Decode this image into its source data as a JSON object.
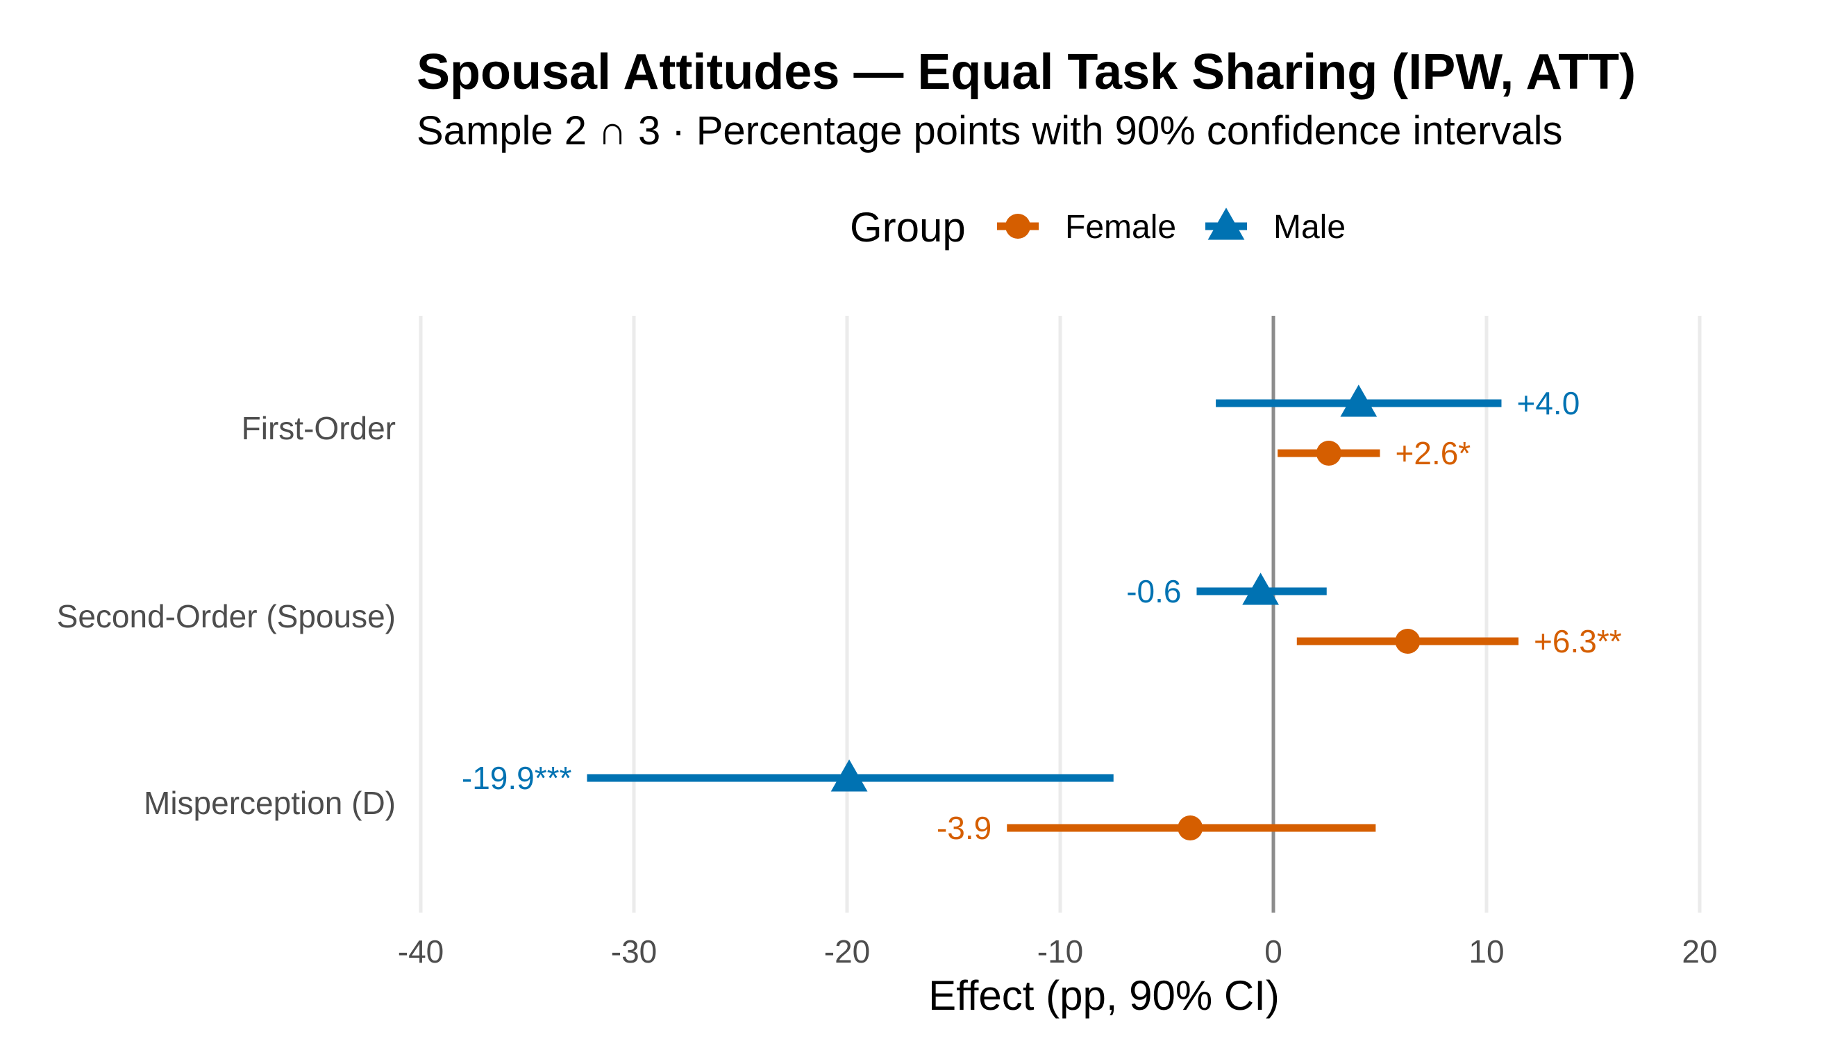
{
  "colors": {
    "female": "#D55E00",
    "male": "#0072B2",
    "grid": "#ebebeb",
    "zero_line": "#8c8c8c"
  },
  "chart_data": {
    "type": "forest",
    "title": "Spousal Attitudes — Equal Task Sharing (IPW, ATT)",
    "subtitle": "Sample 2 ∩ 3 · Percentage points with 90% confidence intervals",
    "xlabel": "Effect (pp, 90% CI)",
    "ylabel": "",
    "xlim": [
      -40,
      20
    ],
    "xticks": [
      -40,
      -30,
      -20,
      -10,
      0,
      10,
      20
    ],
    "xtick_labels": [
      "-40",
      "-30",
      "-20",
      "-10",
      "0",
      "10",
      "20"
    ],
    "grid": true,
    "reference_line": 0,
    "legend": {
      "title": "Group",
      "position": "top",
      "entries": [
        {
          "label": "Female",
          "marker": "circle",
          "color": "#D55E00"
        },
        {
          "label": "Male",
          "marker": "triangle",
          "color": "#0072B2"
        }
      ]
    },
    "categories": [
      "First-Order",
      "Second-Order (Spouse)",
      "Misperception (D)"
    ],
    "series": [
      {
        "name": "Male",
        "marker": "triangle",
        "color": "#0072B2",
        "estimates": [
          4.0,
          -0.6,
          -19.9
        ],
        "ci_low": [
          -2.7,
          -3.6,
          -32.2
        ],
        "ci_high": [
          10.7,
          2.5,
          -7.5
        ],
        "labels": [
          "+4.0",
          "-0.6",
          "-19.9***"
        ]
      },
      {
        "name": "Female",
        "marker": "circle",
        "color": "#D55E00",
        "estimates": [
          2.6,
          6.3,
          -3.9
        ],
        "ci_low": [
          0.2,
          1.1,
          -12.5
        ],
        "ci_high": [
          5.0,
          11.5,
          4.8
        ],
        "labels": [
          "+2.6*",
          "+6.3**",
          "-3.9"
        ]
      }
    ]
  }
}
